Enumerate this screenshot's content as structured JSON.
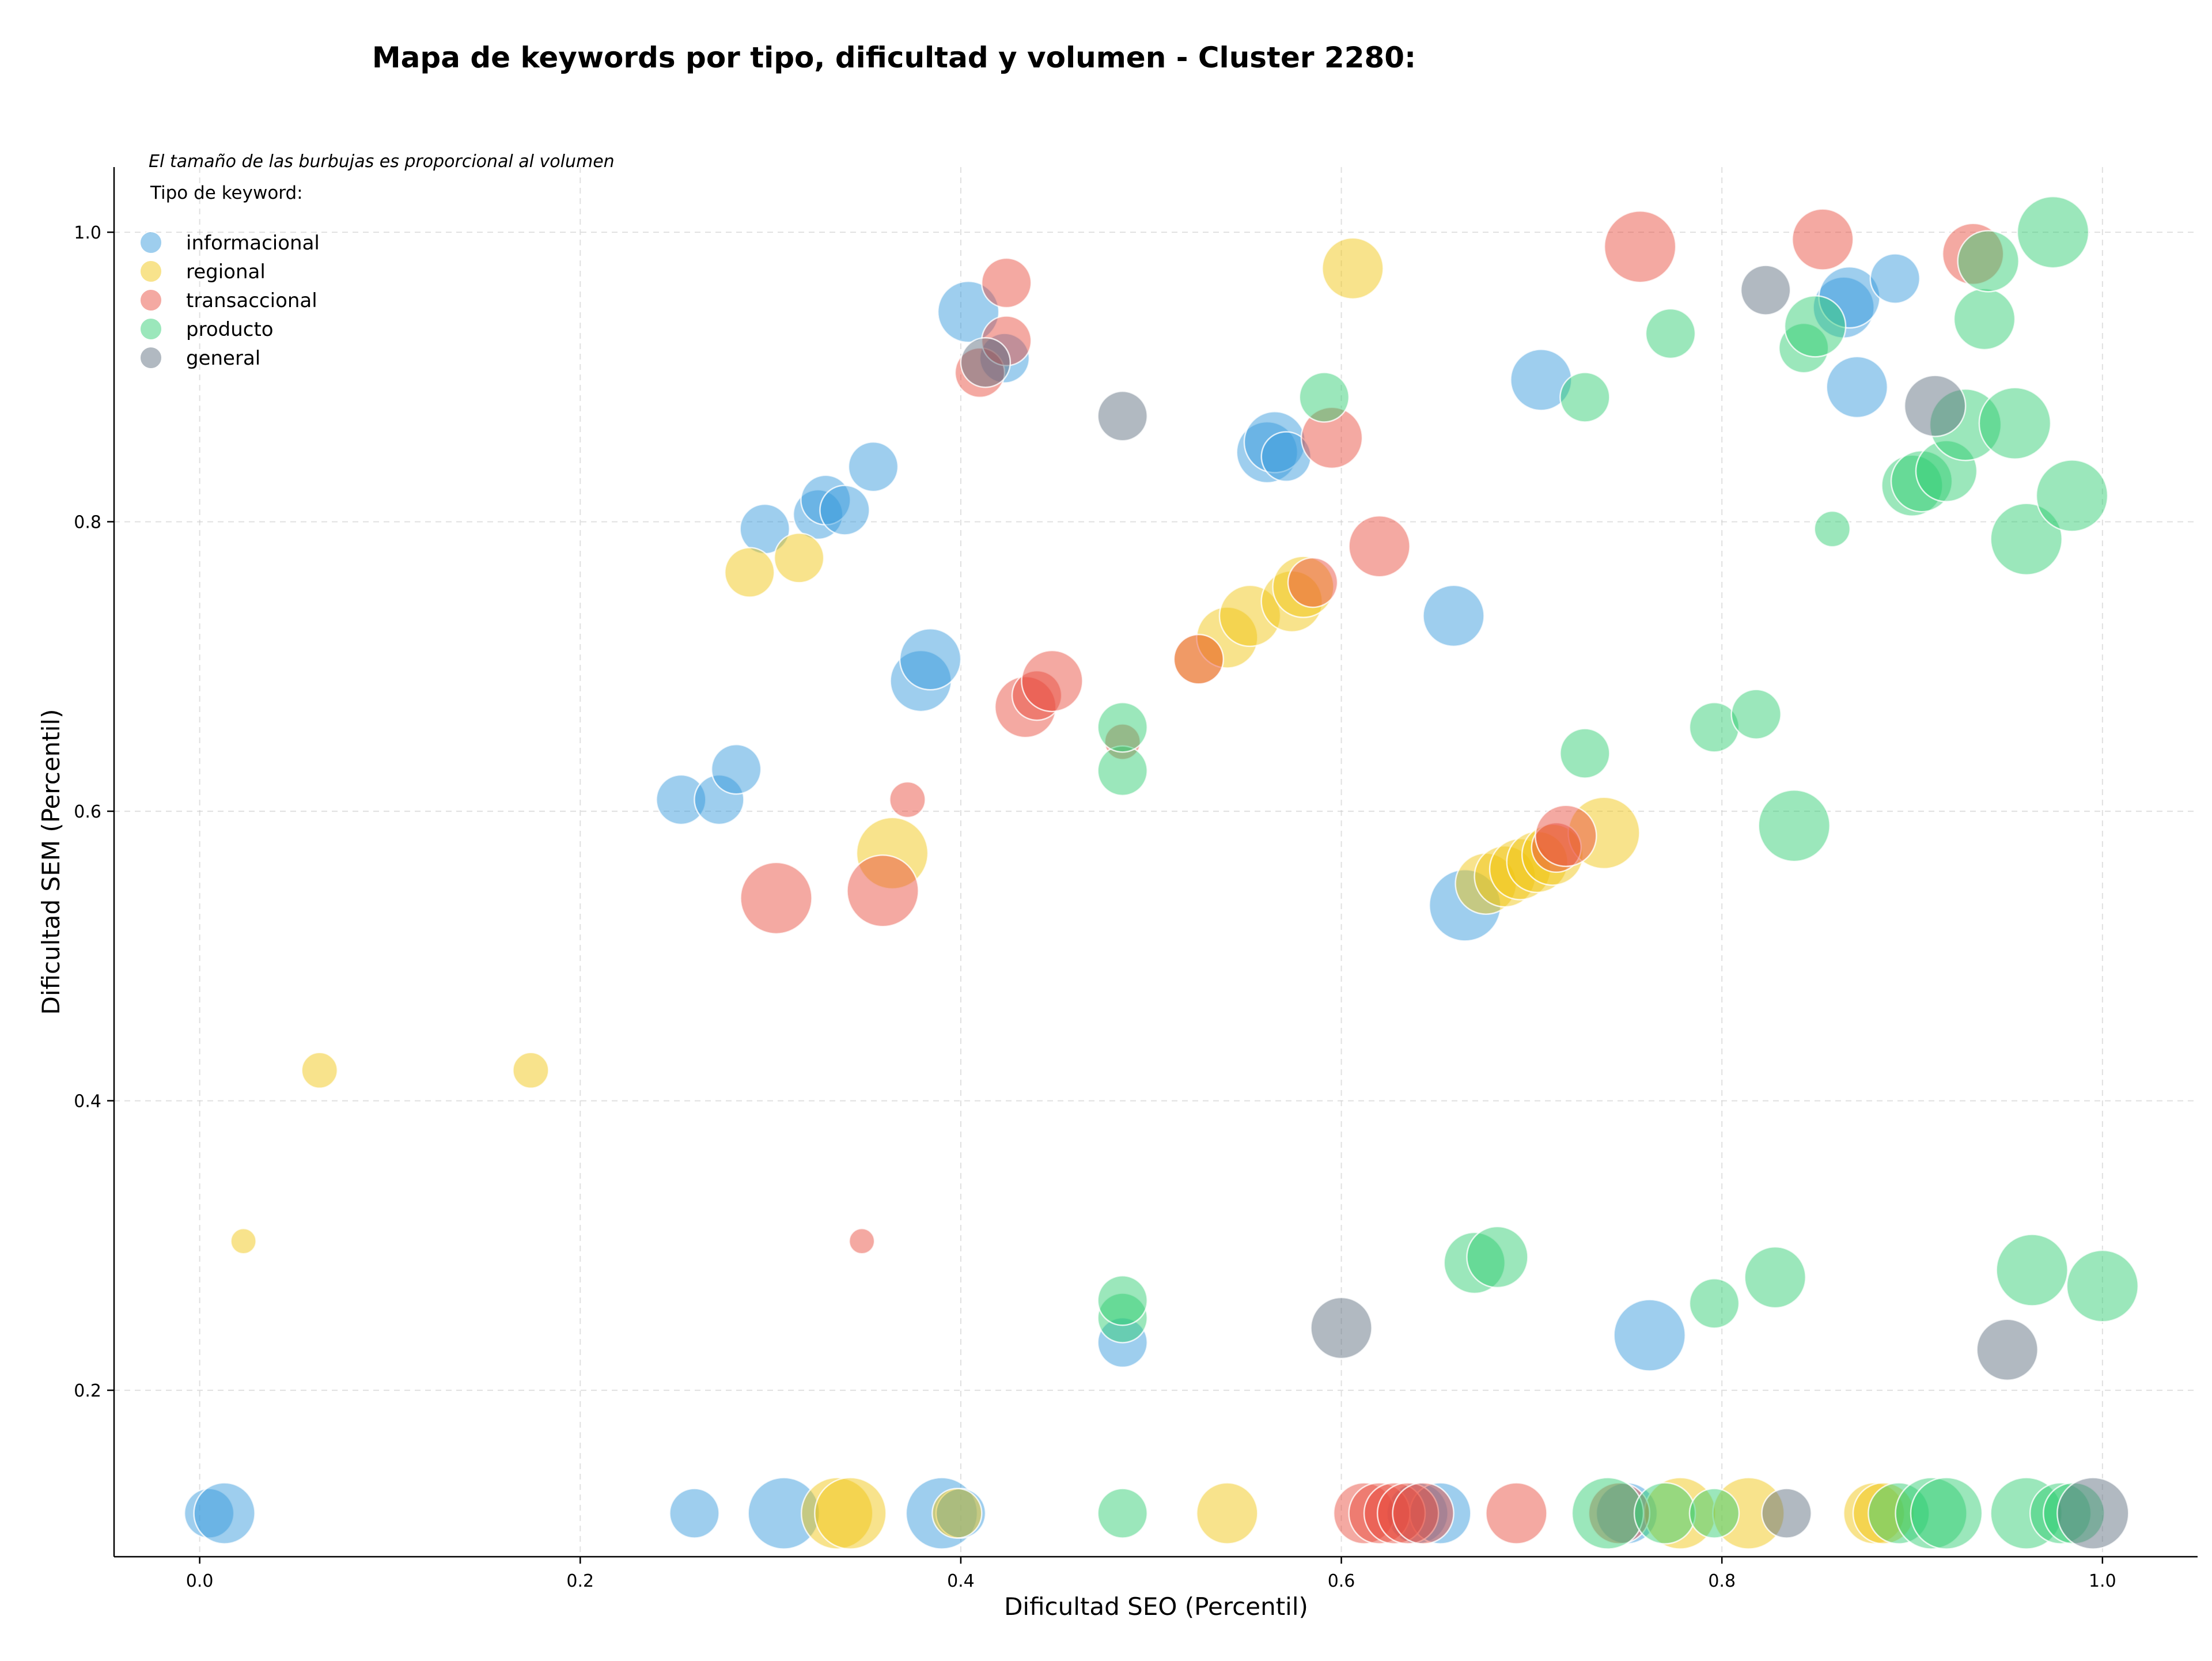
{
  "chart_data": {
    "type": "scatter",
    "title": "Mapa de keywords por tipo, dificultad y volumen - Cluster 2280:",
    "note": "El tamaño de las burbujas es proporcional al volumen",
    "xlabel": "Dificultad SEO (Percentil)",
    "ylabel": "Dificultad SEM (Percentil)",
    "xlim": [
      -0.045,
      1.05
    ],
    "ylim": [
      0.085,
      1.045
    ],
    "xticks": [
      0.0,
      0.2,
      0.4,
      0.6,
      0.8,
      1.0
    ],
    "yticks": [
      0.2,
      0.4,
      0.6,
      0.8,
      1.0
    ],
    "xtick_labels": [
      "0.0",
      "0.2",
      "0.4",
      "0.6",
      "0.8",
      "1.0"
    ],
    "ytick_labels": [
      "0.2",
      "0.4",
      "0.6",
      "0.8",
      "1.0"
    ],
    "grid": true,
    "legend_title": "Tipo de keyword:",
    "legend_position": "top-left",
    "series": [
      {
        "name": "informacional",
        "color": "#3498db",
        "points": [
          {
            "x": 0.005,
            "y": 0.115,
            "size": 3
          },
          {
            "x": 0.013,
            "y": 0.115,
            "size": 4
          },
          {
            "x": 0.26,
            "y": 0.115,
            "size": 3
          },
          {
            "x": 0.307,
            "y": 0.115,
            "size": 5
          },
          {
            "x": 0.39,
            "y": 0.115,
            "size": 5
          },
          {
            "x": 0.4,
            "y": 0.115,
            "size": 3
          },
          {
            "x": 0.64,
            "y": 0.115,
            "size": 4
          },
          {
            "x": 0.652,
            "y": 0.115,
            "size": 4
          },
          {
            "x": 0.75,
            "y": 0.115,
            "size": 4
          },
          {
            "x": 0.485,
            "y": 0.233,
            "size": 3
          },
          {
            "x": 0.762,
            "y": 0.238,
            "size": 5
          },
          {
            "x": 0.253,
            "y": 0.608,
            "size": 3
          },
          {
            "x": 0.273,
            "y": 0.608,
            "size": 3
          },
          {
            "x": 0.282,
            "y": 0.629,
            "size": 3
          },
          {
            "x": 0.665,
            "y": 0.535,
            "size": 5
          },
          {
            "x": 0.379,
            "y": 0.69,
            "size": 4
          },
          {
            "x": 0.384,
            "y": 0.705,
            "size": 4
          },
          {
            "x": 0.659,
            "y": 0.735,
            "size": 4
          },
          {
            "x": 0.297,
            "y": 0.795,
            "size": 3
          },
          {
            "x": 0.325,
            "y": 0.805,
            "size": 3
          },
          {
            "x": 0.329,
            "y": 0.815,
            "size": 3
          },
          {
            "x": 0.339,
            "y": 0.808,
            "size": 3
          },
          {
            "x": 0.354,
            "y": 0.838,
            "size": 3
          },
          {
            "x": 0.561,
            "y": 0.848,
            "size": 4
          },
          {
            "x": 0.565,
            "y": 0.855,
            "size": 4
          },
          {
            "x": 0.571,
            "y": 0.845,
            "size": 3
          },
          {
            "x": 0.705,
            "y": 0.898,
            "size": 4
          },
          {
            "x": 0.404,
            "y": 0.945,
            "size": 4
          },
          {
            "x": 0.423,
            "y": 0.913,
            "size": 3
          },
          {
            "x": 0.871,
            "y": 0.893,
            "size": 4
          },
          {
            "x": 0.864,
            "y": 0.948,
            "size": 4
          },
          {
            "x": 0.867,
            "y": 0.955,
            "size": 4
          },
          {
            "x": 0.891,
            "y": 0.968,
            "size": 3
          }
        ]
      },
      {
        "name": "regional",
        "color": "#f1c40f",
        "points": [
          {
            "x": 0.335,
            "y": 0.115,
            "size": 5
          },
          {
            "x": 0.342,
            "y": 0.115,
            "size": 5
          },
          {
            "x": 0.398,
            "y": 0.115,
            "size": 3
          },
          {
            "x": 0.54,
            "y": 0.115,
            "size": 4
          },
          {
            "x": 0.778,
            "y": 0.115,
            "size": 5
          },
          {
            "x": 0.814,
            "y": 0.115,
            "size": 5
          },
          {
            "x": 0.88,
            "y": 0.115,
            "size": 4
          },
          {
            "x": 0.885,
            "y": 0.115,
            "size": 4
          },
          {
            "x": 0.023,
            "y": 0.303,
            "size": 1
          },
          {
            "x": 0.063,
            "y": 0.421,
            "size": 2
          },
          {
            "x": 0.174,
            "y": 0.421,
            "size": 2
          },
          {
            "x": 0.289,
            "y": 0.765,
            "size": 3
          },
          {
            "x": 0.315,
            "y": 0.775,
            "size": 3
          },
          {
            "x": 0.364,
            "y": 0.571,
            "size": 5
          },
          {
            "x": 0.525,
            "y": 0.705,
            "size": 3
          },
          {
            "x": 0.54,
            "y": 0.72,
            "size": 4
          },
          {
            "x": 0.552,
            "y": 0.735,
            "size": 4
          },
          {
            "x": 0.574,
            "y": 0.745,
            "size": 4
          },
          {
            "x": 0.58,
            "y": 0.755,
            "size": 4
          },
          {
            "x": 0.606,
            "y": 0.975,
            "size": 4
          },
          {
            "x": 0.676,
            "y": 0.55,
            "size": 4
          },
          {
            "x": 0.686,
            "y": 0.555,
            "size": 4
          },
          {
            "x": 0.694,
            "y": 0.56,
            "size": 4
          },
          {
            "x": 0.703,
            "y": 0.565,
            "size": 4
          },
          {
            "x": 0.711,
            "y": 0.57,
            "size": 4
          },
          {
            "x": 0.738,
            "y": 0.585,
            "size": 5
          }
        ]
      },
      {
        "name": "transaccional",
        "color": "#e74c3c",
        "points": [
          {
            "x": 0.612,
            "y": 0.115,
            "size": 4
          },
          {
            "x": 0.62,
            "y": 0.115,
            "size": 4
          },
          {
            "x": 0.628,
            "y": 0.115,
            "size": 4
          },
          {
            "x": 0.635,
            "y": 0.115,
            "size": 4
          },
          {
            "x": 0.643,
            "y": 0.115,
            "size": 4
          },
          {
            "x": 0.692,
            "y": 0.115,
            "size": 4
          },
          {
            "x": 0.746,
            "y": 0.115,
            "size": 4
          },
          {
            "x": 0.348,
            "y": 0.303,
            "size": 1
          },
          {
            "x": 0.303,
            "y": 0.54,
            "size": 5
          },
          {
            "x": 0.359,
            "y": 0.545,
            "size": 5
          },
          {
            "x": 0.372,
            "y": 0.608,
            "size": 2
          },
          {
            "x": 0.485,
            "y": 0.648,
            "size": 2
          },
          {
            "x": 0.434,
            "y": 0.672,
            "size": 4
          },
          {
            "x": 0.44,
            "y": 0.68,
            "size": 3
          },
          {
            "x": 0.448,
            "y": 0.69,
            "size": 4
          },
          {
            "x": 0.525,
            "y": 0.705,
            "size": 3
          },
          {
            "x": 0.585,
            "y": 0.758,
            "size": 3
          },
          {
            "x": 0.62,
            "y": 0.783,
            "size": 4
          },
          {
            "x": 0.595,
            "y": 0.858,
            "size": 4
          },
          {
            "x": 0.41,
            "y": 0.903,
            "size": 3
          },
          {
            "x": 0.424,
            "y": 0.925,
            "size": 3
          },
          {
            "x": 0.424,
            "y": 0.965,
            "size": 3
          },
          {
            "x": 0.713,
            "y": 0.575,
            "size": 3
          },
          {
            "x": 0.718,
            "y": 0.583,
            "size": 4
          },
          {
            "x": 0.757,
            "y": 0.99,
            "size": 5
          },
          {
            "x": 0.853,
            "y": 0.995,
            "size": 4
          },
          {
            "x": 0.932,
            "y": 0.985,
            "size": 4
          }
        ]
      },
      {
        "name": "producto",
        "color": "#2ecc71",
        "points": [
          {
            "x": 0.485,
            "y": 0.115,
            "size": 3
          },
          {
            "x": 0.74,
            "y": 0.115,
            "size": 5
          },
          {
            "x": 0.77,
            "y": 0.115,
            "size": 4
          },
          {
            "x": 0.796,
            "y": 0.115,
            "size": 3
          },
          {
            "x": 0.893,
            "y": 0.115,
            "size": 4
          },
          {
            "x": 0.91,
            "y": 0.115,
            "size": 5
          },
          {
            "x": 0.918,
            "y": 0.115,
            "size": 5
          },
          {
            "x": 0.96,
            "y": 0.115,
            "size": 5
          },
          {
            "x": 0.978,
            "y": 0.115,
            "size": 4
          },
          {
            "x": 0.985,
            "y": 0.115,
            "size": 4
          },
          {
            "x": 0.485,
            "y": 0.25,
            "size": 3
          },
          {
            "x": 0.485,
            "y": 0.262,
            "size": 3
          },
          {
            "x": 0.67,
            "y": 0.288,
            "size": 4
          },
          {
            "x": 0.682,
            "y": 0.292,
            "size": 4
          },
          {
            "x": 0.796,
            "y": 0.26,
            "size": 3
          },
          {
            "x": 0.828,
            "y": 0.278,
            "size": 4
          },
          {
            "x": 0.963,
            "y": 0.283,
            "size": 5
          },
          {
            "x": 1.0,
            "y": 0.272,
            "size": 5
          },
          {
            "x": 0.485,
            "y": 0.628,
            "size": 3
          },
          {
            "x": 0.485,
            "y": 0.658,
            "size": 3
          },
          {
            "x": 0.728,
            "y": 0.64,
            "size": 3
          },
          {
            "x": 0.796,
            "y": 0.658,
            "size": 3
          },
          {
            "x": 0.818,
            "y": 0.667,
            "size": 3
          },
          {
            "x": 0.838,
            "y": 0.59,
            "size": 5
          },
          {
            "x": 0.591,
            "y": 0.886,
            "size": 3
          },
          {
            "x": 0.728,
            "y": 0.886,
            "size": 3
          },
          {
            "x": 0.773,
            "y": 0.93,
            "size": 3
          },
          {
            "x": 0.843,
            "y": 0.92,
            "size": 3
          },
          {
            "x": 0.849,
            "y": 0.935,
            "size": 4
          },
          {
            "x": 0.858,
            "y": 0.795,
            "size": 2
          },
          {
            "x": 0.9,
            "y": 0.825,
            "size": 4
          },
          {
            "x": 0.905,
            "y": 0.828,
            "size": 4
          },
          {
            "x": 0.918,
            "y": 0.835,
            "size": 4
          },
          {
            "x": 0.928,
            "y": 0.867,
            "size": 5
          },
          {
            "x": 0.954,
            "y": 0.868,
            "size": 5
          },
          {
            "x": 0.938,
            "y": 0.94,
            "size": 4
          },
          {
            "x": 0.94,
            "y": 0.98,
            "size": 4
          },
          {
            "x": 0.96,
            "y": 0.788,
            "size": 5
          },
          {
            "x": 0.984,
            "y": 0.818,
            "size": 5
          },
          {
            "x": 0.974,
            "y": 1.0,
            "size": 5
          }
        ]
      },
      {
        "name": "general",
        "color": "#5d6d7e",
        "points": [
          {
            "x": 0.834,
            "y": 0.115,
            "size": 3
          },
          {
            "x": 0.995,
            "y": 0.115,
            "size": 5
          },
          {
            "x": 0.6,
            "y": 0.243,
            "size": 4
          },
          {
            "x": 0.95,
            "y": 0.228,
            "size": 4
          },
          {
            "x": 0.485,
            "y": 0.873,
            "size": 3
          },
          {
            "x": 0.413,
            "y": 0.91,
            "size": 3
          },
          {
            "x": 0.823,
            "y": 0.96,
            "size": 3
          },
          {
            "x": 0.912,
            "y": 0.88,
            "size": 4
          }
        ]
      }
    ]
  }
}
